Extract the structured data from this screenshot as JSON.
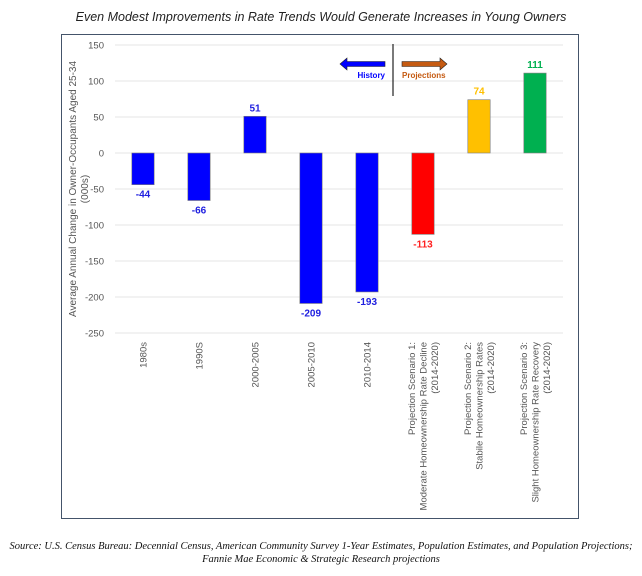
{
  "title": "Even Modest Improvements in Rate Trends Would Generate Increases in Young Owners",
  "source_line1": "Source: U.S. Census Bureau: Decennial Census, American Community Survey 1-Year Estimates, Population Estimates, and Population Projections;",
  "source_line2": "Fannie Mae Economic & Strategic Research projections",
  "chart_data": {
    "type": "bar",
    "title": "Even Modest Improvements in Rate Trends Would Generate Increases in Young Owners",
    "ylabel_line1": "Average Annual Change in Owner-Occupants Aged 25-34",
    "ylabel_line2": "(000s)",
    "xlabel": "",
    "ylim": [
      -250,
      150
    ],
    "yticks": [
      150,
      100,
      50,
      0,
      -50,
      -100,
      -150,
      -200,
      -250
    ],
    "grid": true,
    "categories": [
      [
        "1980s"
      ],
      [
        "1990S"
      ],
      [
        "2000-2005"
      ],
      [
        "2005-2010"
      ],
      [
        "2010-2014"
      ],
      [
        "Projection Scenario 1:",
        "Moderate Homeownership Rate Decline",
        "(2014-2020)"
      ],
      [
        "Projection Scenario 2:",
        "Stabile Homeownership Rates",
        "(2014-2020)"
      ],
      [
        "Projection Scenario 3:",
        "Slight Homeownership Rate Recovery",
        "(2014-2020)"
      ]
    ],
    "values": [
      -44,
      -66,
      51,
      -209,
      -193,
      -113,
      74,
      111
    ],
    "data_labels": [
      "-44",
      "-66",
      "51",
      "-209",
      "-193",
      "-113",
      "74",
      "111"
    ],
    "bar_colors": [
      "#0000ff",
      "#0000ff",
      "#0000ff",
      "#0000ff",
      "#0000ff",
      "#ff0000",
      "#ffc000",
      "#00b050"
    ],
    "label_colors": [
      "#2020e0",
      "#2020e0",
      "#2020e0",
      "#2020e0",
      "#2020e0",
      "#ff2020",
      "#ffc000",
      "#00b050"
    ],
    "annotations": {
      "history_label": "History",
      "history_color": "#0000ff",
      "projections_label": "Projections",
      "projections_color": "#c55a11",
      "divider_between_categories": [
        4,
        5
      ]
    }
  }
}
